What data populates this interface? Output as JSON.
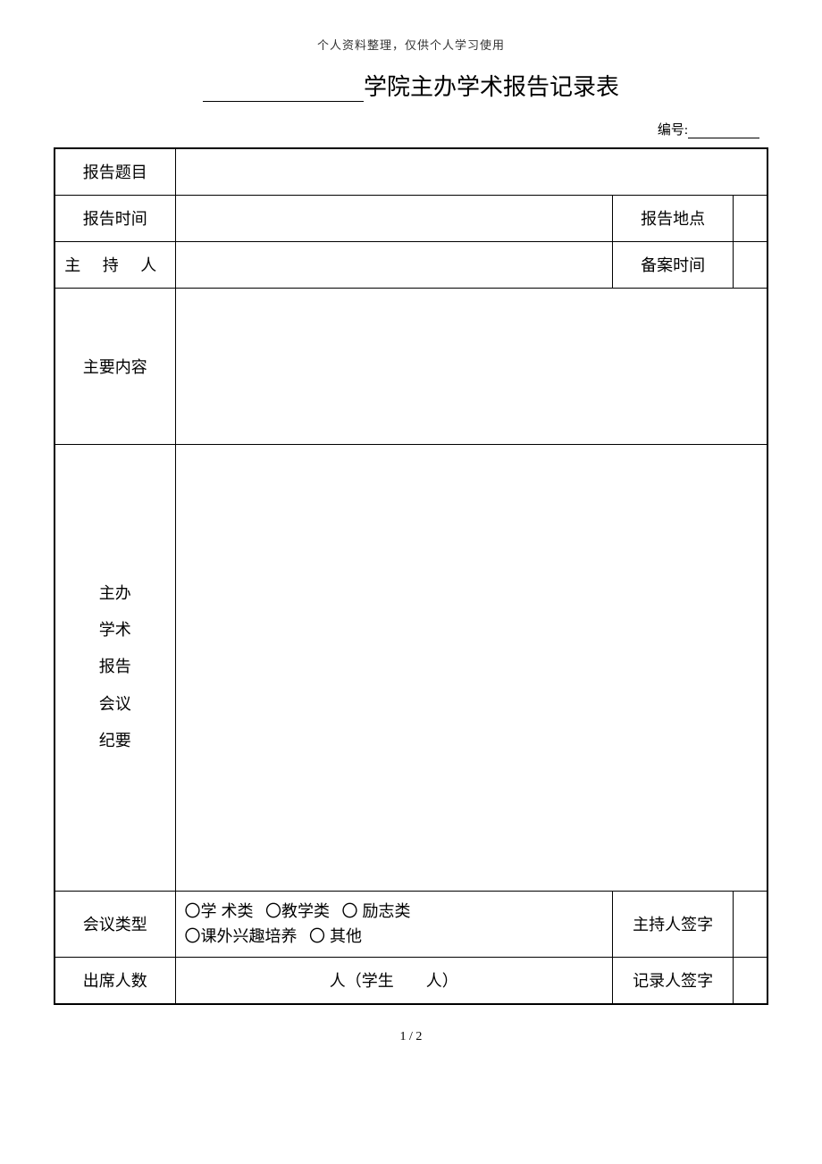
{
  "header_note": "个人资料整理，仅供个人学习使用",
  "title_suffix": "学院主办学术报告记录表",
  "serial_label": "编号:",
  "labels": {
    "report_title": "报告题目",
    "report_time": "报告时间",
    "report_location": "报告地点",
    "host": "主 持 人",
    "filing_time": "备案时间",
    "main_content": "主要内容",
    "minutes_l1": "主办",
    "minutes_l2": "学术",
    "minutes_l3": "报告",
    "minutes_l4": "会议",
    "minutes_l5": "纪要",
    "meeting_type": "会议类型",
    "host_sign": "主持人签字",
    "attendance": "出席人数",
    "recorder_sign": "记录人签字"
  },
  "meeting_types": {
    "opt1": "〇学 术类",
    "opt2": "〇教学类",
    "opt3": "〇 励志类",
    "opt4": "〇课外兴趣培养",
    "opt5": "〇  其他"
  },
  "attendance_text": {
    "unit1": "人（学生",
    "unit2": "人）"
  },
  "footer": "1 / 2"
}
